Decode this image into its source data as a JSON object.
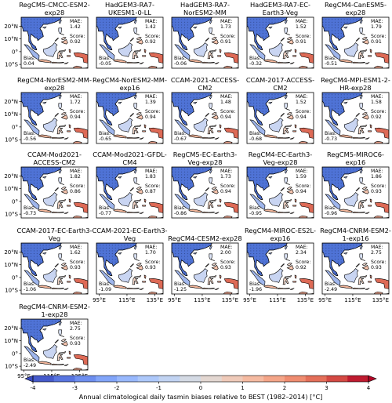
{
  "panels": [
    {
      "title": "RegCM5-CMCC-ESM2-exp28",
      "mae": "1.42",
      "score": "0.92",
      "bias": "0.04"
    },
    {
      "title": "HadGEM3-RA7-UKESM1-0-LL",
      "mae": "1.42",
      "score": "0.92",
      "bias": "-0.05"
    },
    {
      "title": "HadGEM3-RA7-NorESM2-MM",
      "mae": "1.73",
      "score": "0.91",
      "bias": "-0.06"
    },
    {
      "title": "HadGEM3-RA7-EC-Earth3-Veg",
      "mae": "1.52",
      "score": "0.91",
      "bias": "-0.32"
    },
    {
      "title": "RegCM4-CanESM5-exp28",
      "mae": "1.79",
      "score": "0.91",
      "bias": "-0.51"
    },
    {
      "title": "RegCM4-NorESM2-MM-exp28",
      "mae": "1.72",
      "score": "0.94",
      "bias": "-0.56"
    },
    {
      "title": "RegCM4-NorESM2-MM-exp16",
      "mae": "1.39",
      "score": "0.94",
      "bias": "-0.65"
    },
    {
      "title": "CCAM-2021-ACCESS-CM2",
      "mae": "1.48",
      "score": "0.94",
      "bias": "-0.67"
    },
    {
      "title": "CCAM-2017-ACCESS-CM2",
      "mae": "1.52",
      "score": "0.94",
      "bias": "-0.68"
    },
    {
      "title": "RegCM4-MPI-ESM1-2-HR-exp28",
      "mae": "1.58",
      "score": "0.92",
      "bias": "-0.73"
    },
    {
      "title": "CCAM-Mod2021-ACCESS-CM2",
      "mae": "1.82",
      "score": "0.86",
      "bias": "-0.73"
    },
    {
      "title": "CCAM-Mod2021-GFDL-CM4",
      "mae": "1.83",
      "score": "0.87",
      "bias": "-0.77"
    },
    {
      "title": "RegCM5-EC-Earth3-Veg-exp28",
      "mae": "1.73",
      "score": "0.94",
      "bias": "-0.86"
    },
    {
      "title": "RegCM4-EC-Earth3-Veg-exp28",
      "mae": "1.59",
      "score": "0.94",
      "bias": "-0.95"
    },
    {
      "title": "RegCM5-MIROC6-exp16",
      "mae": "1.86",
      "score": "0.93",
      "bias": "-0.96"
    },
    {
      "title": "CCAM-2017-EC-Earth3-Veg",
      "mae": "1.62",
      "score": "0.93",
      "bias": "-1.06"
    },
    {
      "title": "CCAM-2021-EC-Earth3-Veg",
      "mae": "1.70",
      "score": "0.93",
      "bias": "-1.09"
    },
    {
      "title": "RegCM4-CESM2-exp28",
      "mae": "2.00",
      "score": "0.93",
      "bias": "-1.25"
    },
    {
      "title": "RegCM4-MIROC-ES2L-exp16",
      "mae": "2.34",
      "score": "0.92",
      "bias": "-1.96"
    },
    {
      "title": "RegCM4-CNRM-ESM2-1-exp16",
      "mae": "2.75",
      "score": "0.93",
      "bias": "-2.49"
    },
    {
      "title": "RegCM4-CNRM-ESM2-1-exp28",
      "mae": "2.75",
      "score": "0.93",
      "bias": "-2.49"
    }
  ],
  "labels": {
    "mae": "MAE:",
    "score": "Score:",
    "bias": "Bias:"
  },
  "lat_ticks": [
    {
      "value": 20,
      "label": "20°N"
    },
    {
      "value": 10,
      "label": "10°N"
    },
    {
      "value": 0,
      "label": "0°"
    },
    {
      "value": -10,
      "label": "10°S"
    }
  ],
  "lon_ticks": [
    {
      "value": 95,
      "label": "95°E"
    },
    {
      "value": 115,
      "label": "115°E"
    },
    {
      "value": 135,
      "label": "135°E"
    }
  ],
  "colorbar": {
    "label": "Annual climatological daily tasmin biases relative to BEST (1982–2014) [°C]",
    "lim": [
      -4,
      4
    ],
    "ticks": [
      -4,
      -3,
      -2,
      -1,
      0,
      1,
      2,
      3,
      4
    ]
  }
}
